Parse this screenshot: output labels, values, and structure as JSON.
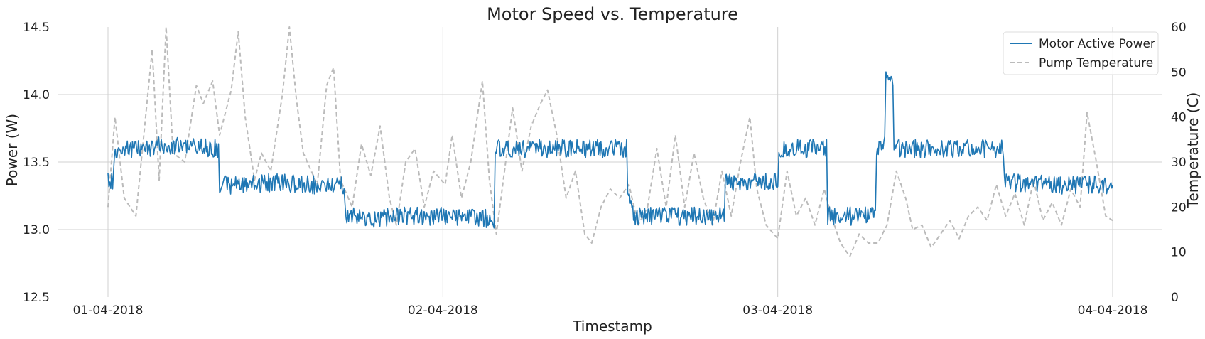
{
  "chart_data": {
    "type": "line",
    "title": "Motor Speed vs. Temperature",
    "xlabel": "Timestamp",
    "ylabel": "Power (W)",
    "ylabel_right": "Temperature (C)",
    "xlim": [
      "2018-04-01",
      "2018-04-04"
    ],
    "ylim": [
      12.5,
      14.5
    ],
    "ylim_right": [
      0,
      60
    ],
    "x_ticks": [
      "01-04-2018",
      "02-04-2018",
      "03-04-2018",
      "04-04-2018"
    ],
    "y_ticks": [
      "12.5",
      "13.0",
      "13.5",
      "14.0",
      "14.5"
    ],
    "y_ticks_right": [
      "0",
      "10",
      "20",
      "30",
      "40",
      "50",
      "60"
    ],
    "grid": true,
    "legend_position": "top-right",
    "series": [
      {
        "name": "Motor Active Power",
        "axis": "left",
        "color": "#1f77b4",
        "style": "solid",
        "points": [
          [
            "2018-04-01 00:00",
            13.38
          ],
          [
            "2018-04-01 00:20",
            13.35
          ],
          [
            "2018-04-01 00:35",
            13.6
          ],
          [
            "2018-04-01 02:00",
            13.6
          ],
          [
            "2018-04-01 04:00",
            13.62
          ],
          [
            "2018-04-01 06:00",
            13.62
          ],
          [
            "2018-04-01 07:55",
            13.6
          ],
          [
            "2018-04-01 08:00",
            13.33
          ],
          [
            "2018-04-01 10:00",
            13.33
          ],
          [
            "2018-04-01 12:00",
            13.35
          ],
          [
            "2018-04-01 14:00",
            13.33
          ],
          [
            "2018-04-01 16:55",
            13.33
          ],
          [
            "2018-04-01 17:00",
            13.1
          ],
          [
            "2018-04-01 19:00",
            13.08
          ],
          [
            "2018-04-01 21:00",
            13.1
          ],
          [
            "2018-04-02 00:00",
            13.1
          ],
          [
            "2018-04-02 03:40",
            13.08
          ],
          [
            "2018-04-02 03:45",
            13.6
          ],
          [
            "2018-04-02 06:00",
            13.6
          ],
          [
            "2018-04-02 09:00",
            13.6
          ],
          [
            "2018-04-02 13:10",
            13.6
          ],
          [
            "2018-04-02 13:15",
            13.3
          ],
          [
            "2018-04-02 13:40",
            13.1
          ],
          [
            "2018-04-02 16:00",
            13.1
          ],
          [
            "2018-04-02 20:10",
            13.1
          ],
          [
            "2018-04-02 20:15",
            13.35
          ],
          [
            "2018-04-03 00:00",
            13.35
          ],
          [
            "2018-04-03 00:05",
            13.6
          ],
          [
            "2018-04-03 03:30",
            13.6
          ],
          [
            "2018-04-03 03:35",
            13.1
          ],
          [
            "2018-04-03 05:30",
            13.1
          ],
          [
            "2018-04-03 07:00",
            13.12
          ],
          [
            "2018-04-03 07:05",
            13.6
          ],
          [
            "2018-04-03 07:40",
            13.62
          ],
          [
            "2018-04-03 07:45",
            14.1
          ],
          [
            "2018-04-03 08:15",
            14.1
          ],
          [
            "2018-04-03 08:20",
            13.6
          ],
          [
            "2018-04-03 12:00",
            13.6
          ],
          [
            "2018-04-03 16:10",
            13.6
          ],
          [
            "2018-04-03 16:15",
            13.35
          ],
          [
            "2018-04-03 20:00",
            13.33
          ],
          [
            "2018-04-04 00:00",
            13.33
          ]
        ]
      },
      {
        "name": "Pump Temperature",
        "axis": "right",
        "color": "#bbbbbb",
        "style": "dashed",
        "points": [
          [
            "2018-04-01 00:00",
            20
          ],
          [
            "2018-04-01 00:30",
            40
          ],
          [
            "2018-04-01 01:10",
            22
          ],
          [
            "2018-04-01 02:00",
            18
          ],
          [
            "2018-04-01 03:10",
            55
          ],
          [
            "2018-04-01 03:40",
            26
          ],
          [
            "2018-04-01 04:10",
            60
          ],
          [
            "2018-04-01 04:40",
            32
          ],
          [
            "2018-04-01 05:30",
            30
          ],
          [
            "2018-04-01 06:20",
            47
          ],
          [
            "2018-04-01 06:50",
            43
          ],
          [
            "2018-04-01 07:30",
            48
          ],
          [
            "2018-04-01 08:00",
            36
          ],
          [
            "2018-04-01 08:50",
            46
          ],
          [
            "2018-04-01 09:20",
            59
          ],
          [
            "2018-04-01 09:50",
            40
          ],
          [
            "2018-04-01 10:30",
            26
          ],
          [
            "2018-04-01 11:00",
            32
          ],
          [
            "2018-04-01 11:40",
            28
          ],
          [
            "2018-04-01 12:30",
            45
          ],
          [
            "2018-04-01 13:00",
            60
          ],
          [
            "2018-04-01 13:30",
            44
          ],
          [
            "2018-04-01 14:00",
            32
          ],
          [
            "2018-04-01 15:00",
            25
          ],
          [
            "2018-04-01 15:40",
            47
          ],
          [
            "2018-04-01 16:10",
            51
          ],
          [
            "2018-04-01 16:40",
            26
          ],
          [
            "2018-04-01 17:30",
            20
          ],
          [
            "2018-04-01 18:10",
            34
          ],
          [
            "2018-04-01 18:50",
            27
          ],
          [
            "2018-04-01 19:30",
            38
          ],
          [
            "2018-04-01 20:10",
            22
          ],
          [
            "2018-04-01 20:40",
            16
          ],
          [
            "2018-04-01 21:20",
            30
          ],
          [
            "2018-04-01 22:00",
            33
          ],
          [
            "2018-04-01 22:40",
            20
          ],
          [
            "2018-04-01 23:20",
            28
          ],
          [
            "2018-04-02 00:10",
            25
          ],
          [
            "2018-04-02 00:40",
            36
          ],
          [
            "2018-04-02 01:20",
            22
          ],
          [
            "2018-04-02 02:00",
            30
          ],
          [
            "2018-04-02 02:50",
            48
          ],
          [
            "2018-04-02 03:20",
            26
          ],
          [
            "2018-04-02 03:50",
            14
          ],
          [
            "2018-04-02 04:30",
            30
          ],
          [
            "2018-04-02 05:00",
            42
          ],
          [
            "2018-04-02 05:40",
            28
          ],
          [
            "2018-04-02 06:20",
            38
          ],
          [
            "2018-04-02 07:00",
            43
          ],
          [
            "2018-04-02 07:30",
            46
          ],
          [
            "2018-04-02 08:10",
            36
          ],
          [
            "2018-04-02 08:50",
            22
          ],
          [
            "2018-04-02 09:30",
            28
          ],
          [
            "2018-04-02 10:10",
            14
          ],
          [
            "2018-04-02 10:40",
            12
          ],
          [
            "2018-04-02 11:20",
            20
          ],
          [
            "2018-04-02 12:00",
            24
          ],
          [
            "2018-04-02 12:40",
            22
          ],
          [
            "2018-04-02 13:20",
            25
          ],
          [
            "2018-04-02 14:00",
            16
          ],
          [
            "2018-04-02 14:40",
            20
          ],
          [
            "2018-04-02 15:20",
            33
          ],
          [
            "2018-04-02 16:00",
            20
          ],
          [
            "2018-04-02 16:40",
            36
          ],
          [
            "2018-04-02 17:20",
            20
          ],
          [
            "2018-04-02 18:00",
            32
          ],
          [
            "2018-04-02 18:40",
            22
          ],
          [
            "2018-04-02 19:20",
            16
          ],
          [
            "2018-04-02 20:00",
            28
          ],
          [
            "2018-04-02 20:40",
            18
          ],
          [
            "2018-04-02 21:20",
            30
          ],
          [
            "2018-04-02 22:00",
            40
          ],
          [
            "2018-04-02 22:30",
            24
          ],
          [
            "2018-04-02 23:10",
            16
          ],
          [
            "2018-04-03 00:00",
            13
          ],
          [
            "2018-04-03 00:40",
            28
          ],
          [
            "2018-04-03 01:20",
            18
          ],
          [
            "2018-04-03 02:00",
            22
          ],
          [
            "2018-04-03 02:40",
            16
          ],
          [
            "2018-04-03 03:20",
            24
          ],
          [
            "2018-04-03 03:50",
            18
          ],
          [
            "2018-04-03 04:30",
            12
          ],
          [
            "2018-04-03 05:10",
            9
          ],
          [
            "2018-04-03 05:50",
            14
          ],
          [
            "2018-04-03 06:30",
            12
          ],
          [
            "2018-04-03 07:10",
            12
          ],
          [
            "2018-04-03 07:50",
            16
          ],
          [
            "2018-04-03 08:30",
            28
          ],
          [
            "2018-04-03 09:10",
            22
          ],
          [
            "2018-04-03 09:40",
            15
          ],
          [
            "2018-04-03 10:20",
            16
          ],
          [
            "2018-04-03 11:00",
            11
          ],
          [
            "2018-04-03 11:40",
            14
          ],
          [
            "2018-04-03 12:20",
            17
          ],
          [
            "2018-04-03 13:00",
            13
          ],
          [
            "2018-04-03 13:40",
            18
          ],
          [
            "2018-04-03 14:20",
            20
          ],
          [
            "2018-04-03 15:00",
            17
          ],
          [
            "2018-04-03 15:40",
            25
          ],
          [
            "2018-04-03 16:20",
            18
          ],
          [
            "2018-04-03 17:00",
            23
          ],
          [
            "2018-04-03 17:40",
            16
          ],
          [
            "2018-04-03 18:20",
            26
          ],
          [
            "2018-04-03 19:00",
            17
          ],
          [
            "2018-04-03 19:40",
            21
          ],
          [
            "2018-04-03 20:20",
            16
          ],
          [
            "2018-04-03 21:00",
            24
          ],
          [
            "2018-04-03 21:40",
            20
          ],
          [
            "2018-04-03 22:10",
            41
          ],
          [
            "2018-04-03 22:50",
            30
          ],
          [
            "2018-04-03 23:30",
            18
          ],
          [
            "2018-04-04 00:00",
            17
          ]
        ]
      }
    ]
  }
}
